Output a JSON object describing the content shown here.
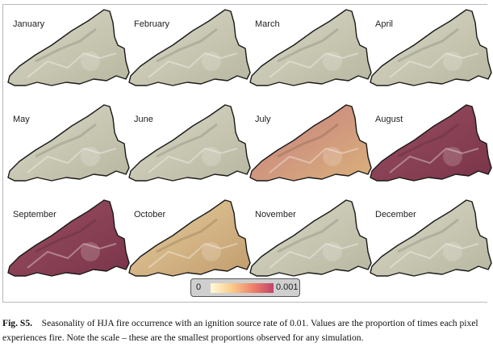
{
  "figure": {
    "panels": [
      {
        "label": "January",
        "fire": "none"
      },
      {
        "label": "February",
        "fire": "none"
      },
      {
        "label": "March",
        "fire": "none"
      },
      {
        "label": "April",
        "fire": "none"
      },
      {
        "label": "May",
        "fire": "none"
      },
      {
        "label": "June",
        "fire": "none"
      },
      {
        "label": "July",
        "fire": "high-mixed"
      },
      {
        "label": "August",
        "fire": "very-high"
      },
      {
        "label": "September",
        "fire": "very-high"
      },
      {
        "label": "October",
        "fire": "low"
      },
      {
        "label": "November",
        "fire": "none"
      },
      {
        "label": "December",
        "fire": "none"
      }
    ],
    "legend": {
      "min_label": "0",
      "max_label": "0.001",
      "colors": [
        "#fffbd6",
        "#f9c98a",
        "#ec7c6a",
        "#c0446a"
      ]
    }
  },
  "caption": {
    "label": "Fig. S5.",
    "text": "Seasonality of HJA fire occurrence with an ignition source rate of 0.01. Values are the proportion of times each pixel experiences fire. Note the scale – these are the smallest proportions observed for any simulation."
  }
}
